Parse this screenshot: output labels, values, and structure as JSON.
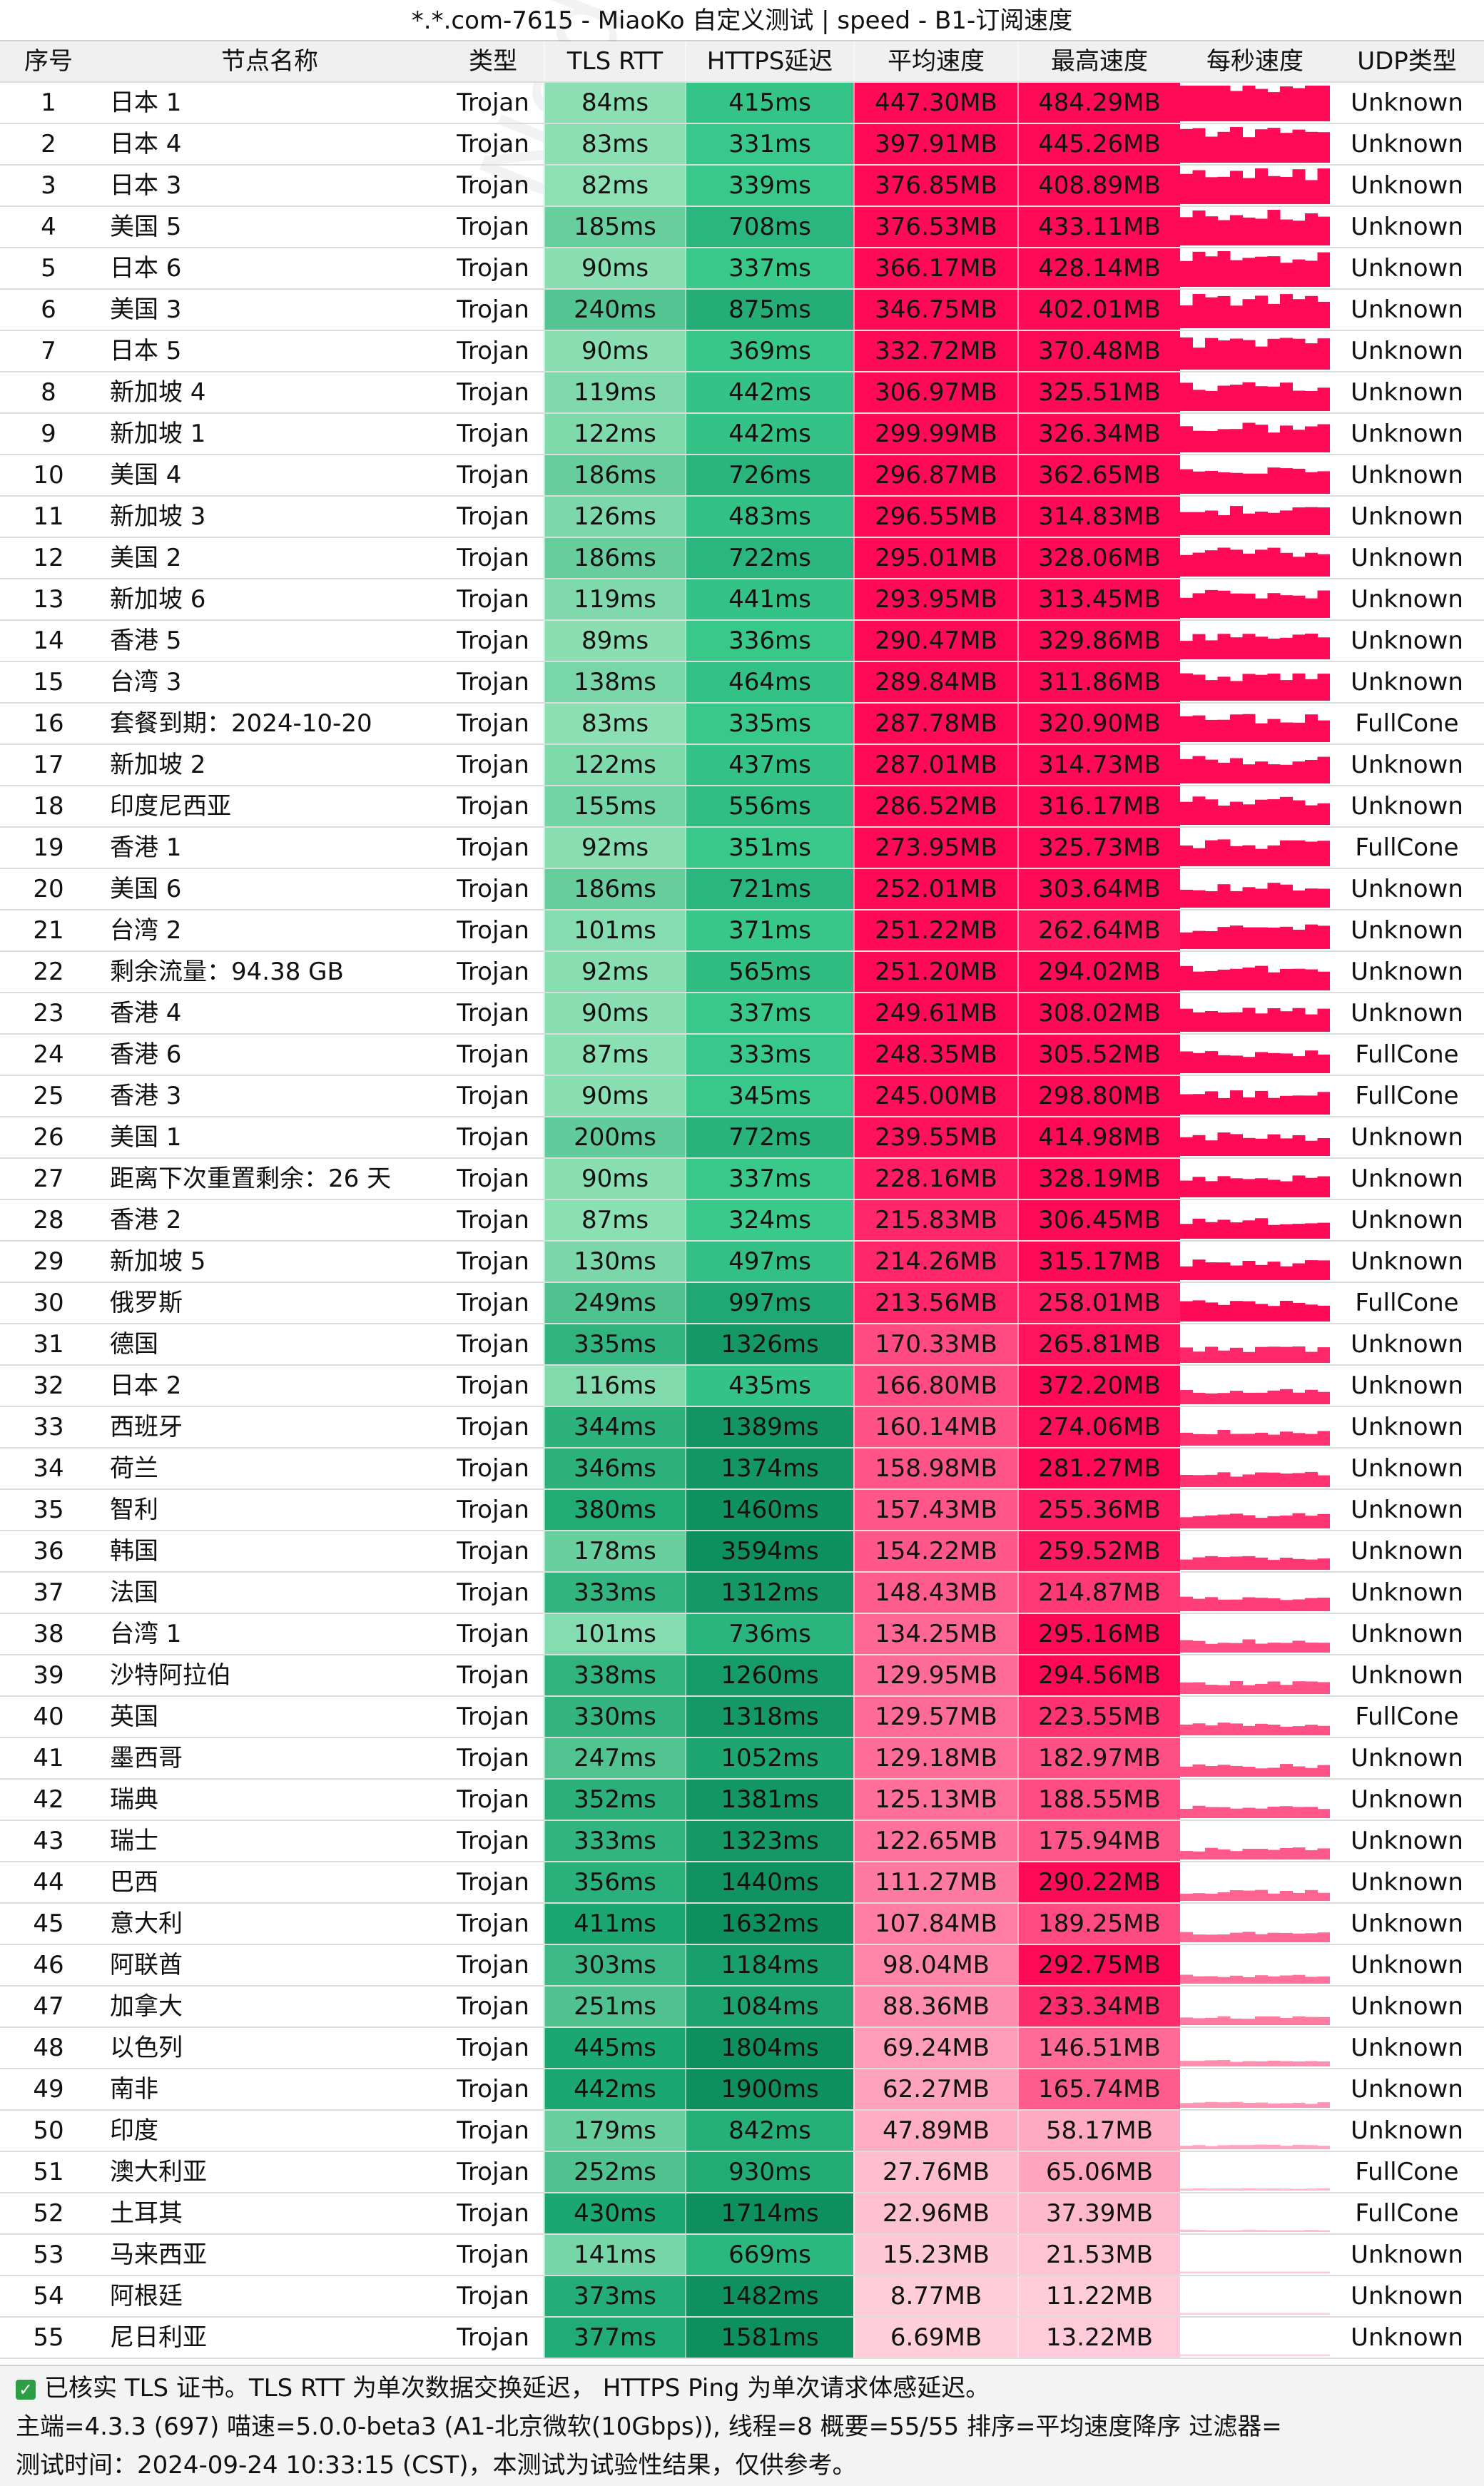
{
  "title": "*.*.com-7615 - MiaoKo 自定义测试 | speed - B1-订阅速度",
  "headers": {
    "idx": "序号",
    "name": "节点名称",
    "type": "类型",
    "tls": "TLS RTT",
    "https": "HTTPS延迟",
    "avg": "平均速度",
    "max": "最高速度",
    "spark": "每秒速度",
    "udp": "UDP类型"
  },
  "rows": [
    {
      "idx": "1",
      "name": "日本 1",
      "type": "Trojan",
      "tls": "84ms",
      "https": "415ms",
      "avg": "447.30MB",
      "max": "484.29MB",
      "udp": "Unknown"
    },
    {
      "idx": "2",
      "name": "日本 4",
      "type": "Trojan",
      "tls": "83ms",
      "https": "331ms",
      "avg": "397.91MB",
      "max": "445.26MB",
      "udp": "Unknown"
    },
    {
      "idx": "3",
      "name": "日本 3",
      "type": "Trojan",
      "tls": "82ms",
      "https": "339ms",
      "avg": "376.85MB",
      "max": "408.89MB",
      "udp": "Unknown"
    },
    {
      "idx": "4",
      "name": "美国 5",
      "type": "Trojan",
      "tls": "185ms",
      "https": "708ms",
      "avg": "376.53MB",
      "max": "433.11MB",
      "udp": "Unknown"
    },
    {
      "idx": "5",
      "name": "日本 6",
      "type": "Trojan",
      "tls": "90ms",
      "https": "337ms",
      "avg": "366.17MB",
      "max": "428.14MB",
      "udp": "Unknown"
    },
    {
      "idx": "6",
      "name": "美国 3",
      "type": "Trojan",
      "tls": "240ms",
      "https": "875ms",
      "avg": "346.75MB",
      "max": "402.01MB",
      "udp": "Unknown"
    },
    {
      "idx": "7",
      "name": "日本 5",
      "type": "Trojan",
      "tls": "90ms",
      "https": "369ms",
      "avg": "332.72MB",
      "max": "370.48MB",
      "udp": "Unknown"
    },
    {
      "idx": "8",
      "name": "新加坡 4",
      "type": "Trojan",
      "tls": "119ms",
      "https": "442ms",
      "avg": "306.97MB",
      "max": "325.51MB",
      "udp": "Unknown"
    },
    {
      "idx": "9",
      "name": "新加坡 1",
      "type": "Trojan",
      "tls": "122ms",
      "https": "442ms",
      "avg": "299.99MB",
      "max": "326.34MB",
      "udp": "Unknown"
    },
    {
      "idx": "10",
      "name": "美国 4",
      "type": "Trojan",
      "tls": "186ms",
      "https": "726ms",
      "avg": "296.87MB",
      "max": "362.65MB",
      "udp": "Unknown"
    },
    {
      "idx": "11",
      "name": "新加坡 3",
      "type": "Trojan",
      "tls": "126ms",
      "https": "483ms",
      "avg": "296.55MB",
      "max": "314.83MB",
      "udp": "Unknown"
    },
    {
      "idx": "12",
      "name": "美国 2",
      "type": "Trojan",
      "tls": "186ms",
      "https": "722ms",
      "avg": "295.01MB",
      "max": "328.06MB",
      "udp": "Unknown"
    },
    {
      "idx": "13",
      "name": "新加坡 6",
      "type": "Trojan",
      "tls": "119ms",
      "https": "441ms",
      "avg": "293.95MB",
      "max": "313.45MB",
      "udp": "Unknown"
    },
    {
      "idx": "14",
      "name": "香港 5",
      "type": "Trojan",
      "tls": "89ms",
      "https": "336ms",
      "avg": "290.47MB",
      "max": "329.86MB",
      "udp": "Unknown"
    },
    {
      "idx": "15",
      "name": "台湾 3",
      "type": "Trojan",
      "tls": "138ms",
      "https": "464ms",
      "avg": "289.84MB",
      "max": "311.86MB",
      "udp": "Unknown"
    },
    {
      "idx": "16",
      "name": "套餐到期：2024-10-20",
      "type": "Trojan",
      "tls": "83ms",
      "https": "335ms",
      "avg": "287.78MB",
      "max": "320.90MB",
      "udp": "FullCone"
    },
    {
      "idx": "17",
      "name": "新加坡 2",
      "type": "Trojan",
      "tls": "122ms",
      "https": "437ms",
      "avg": "287.01MB",
      "max": "314.73MB",
      "udp": "Unknown"
    },
    {
      "idx": "18",
      "name": "印度尼西亚",
      "type": "Trojan",
      "tls": "155ms",
      "https": "556ms",
      "avg": "286.52MB",
      "max": "316.17MB",
      "udp": "Unknown"
    },
    {
      "idx": "19",
      "name": "香港 1",
      "type": "Trojan",
      "tls": "92ms",
      "https": "351ms",
      "avg": "273.95MB",
      "max": "325.73MB",
      "udp": "FullCone"
    },
    {
      "idx": "20",
      "name": "美国 6",
      "type": "Trojan",
      "tls": "186ms",
      "https": "721ms",
      "avg": "252.01MB",
      "max": "303.64MB",
      "udp": "Unknown"
    },
    {
      "idx": "21",
      "name": "台湾 2",
      "type": "Trojan",
      "tls": "101ms",
      "https": "371ms",
      "avg": "251.22MB",
      "max": "262.64MB",
      "udp": "Unknown"
    },
    {
      "idx": "22",
      "name": "剩余流量：94.38 GB",
      "type": "Trojan",
      "tls": "92ms",
      "https": "565ms",
      "avg": "251.20MB",
      "max": "294.02MB",
      "udp": "Unknown"
    },
    {
      "idx": "23",
      "name": "香港 4",
      "type": "Trojan",
      "tls": "90ms",
      "https": "337ms",
      "avg": "249.61MB",
      "max": "308.02MB",
      "udp": "Unknown"
    },
    {
      "idx": "24",
      "name": "香港 6",
      "type": "Trojan",
      "tls": "87ms",
      "https": "333ms",
      "avg": "248.35MB",
      "max": "305.52MB",
      "udp": "FullCone"
    },
    {
      "idx": "25",
      "name": "香港 3",
      "type": "Trojan",
      "tls": "90ms",
      "https": "345ms",
      "avg": "245.00MB",
      "max": "298.80MB",
      "udp": "FullCone"
    },
    {
      "idx": "26",
      "name": "美国 1",
      "type": "Trojan",
      "tls": "200ms",
      "https": "772ms",
      "avg": "239.55MB",
      "max": "414.98MB",
      "udp": "Unknown"
    },
    {
      "idx": "27",
      "name": "距离下次重置剩余：26 天",
      "type": "Trojan",
      "tls": "90ms",
      "https": "337ms",
      "avg": "228.16MB",
      "max": "328.19MB",
      "udp": "Unknown"
    },
    {
      "idx": "28",
      "name": "香港 2",
      "type": "Trojan",
      "tls": "87ms",
      "https": "324ms",
      "avg": "215.83MB",
      "max": "306.45MB",
      "udp": "Unknown"
    },
    {
      "idx": "29",
      "name": "新加坡 5",
      "type": "Trojan",
      "tls": "130ms",
      "https": "497ms",
      "avg": "214.26MB",
      "max": "315.17MB",
      "udp": "Unknown"
    },
    {
      "idx": "30",
      "name": "俄罗斯",
      "type": "Trojan",
      "tls": "249ms",
      "https": "997ms",
      "avg": "213.56MB",
      "max": "258.01MB",
      "udp": "FullCone"
    },
    {
      "idx": "31",
      "name": "德国",
      "type": "Trojan",
      "tls": "335ms",
      "https": "1326ms",
      "avg": "170.33MB",
      "max": "265.81MB",
      "udp": "Unknown"
    },
    {
      "idx": "32",
      "name": "日本 2",
      "type": "Trojan",
      "tls": "116ms",
      "https": "435ms",
      "avg": "166.80MB",
      "max": "372.20MB",
      "udp": "Unknown"
    },
    {
      "idx": "33",
      "name": "西班牙",
      "type": "Trojan",
      "tls": "344ms",
      "https": "1389ms",
      "avg": "160.14MB",
      "max": "274.06MB",
      "udp": "Unknown"
    },
    {
      "idx": "34",
      "name": "荷兰",
      "type": "Trojan",
      "tls": "346ms",
      "https": "1374ms",
      "avg": "158.98MB",
      "max": "281.27MB",
      "udp": "Unknown"
    },
    {
      "idx": "35",
      "name": "智利",
      "type": "Trojan",
      "tls": "380ms",
      "https": "1460ms",
      "avg": "157.43MB",
      "max": "255.36MB",
      "udp": "Unknown"
    },
    {
      "idx": "36",
      "name": "韩国",
      "type": "Trojan",
      "tls": "178ms",
      "https": "3594ms",
      "avg": "154.22MB",
      "max": "259.52MB",
      "udp": "Unknown"
    },
    {
      "idx": "37",
      "name": "法国",
      "type": "Trojan",
      "tls": "333ms",
      "https": "1312ms",
      "avg": "148.43MB",
      "max": "214.87MB",
      "udp": "Unknown"
    },
    {
      "idx": "38",
      "name": "台湾 1",
      "type": "Trojan",
      "tls": "101ms",
      "https": "736ms",
      "avg": "134.25MB",
      "max": "295.16MB",
      "udp": "Unknown"
    },
    {
      "idx": "39",
      "name": "沙特阿拉伯",
      "type": "Trojan",
      "tls": "338ms",
      "https": "1260ms",
      "avg": "129.95MB",
      "max": "294.56MB",
      "udp": "Unknown"
    },
    {
      "idx": "40",
      "name": "英国",
      "type": "Trojan",
      "tls": "330ms",
      "https": "1318ms",
      "avg": "129.57MB",
      "max": "223.55MB",
      "udp": "FullCone"
    },
    {
      "idx": "41",
      "name": "墨西哥",
      "type": "Trojan",
      "tls": "247ms",
      "https": "1052ms",
      "avg": "129.18MB",
      "max": "182.97MB",
      "udp": "Unknown"
    },
    {
      "idx": "42",
      "name": "瑞典",
      "type": "Trojan",
      "tls": "352ms",
      "https": "1381ms",
      "avg": "125.13MB",
      "max": "188.55MB",
      "udp": "Unknown"
    },
    {
      "idx": "43",
      "name": "瑞士",
      "type": "Trojan",
      "tls": "333ms",
      "https": "1323ms",
      "avg": "122.65MB",
      "max": "175.94MB",
      "udp": "Unknown"
    },
    {
      "idx": "44",
      "name": "巴西",
      "type": "Trojan",
      "tls": "356ms",
      "https": "1440ms",
      "avg": "111.27MB",
      "max": "290.22MB",
      "udp": "Unknown"
    },
    {
      "idx": "45",
      "name": "意大利",
      "type": "Trojan",
      "tls": "411ms",
      "https": "1632ms",
      "avg": "107.84MB",
      "max": "189.25MB",
      "udp": "Unknown"
    },
    {
      "idx": "46",
      "name": "阿联酋",
      "type": "Trojan",
      "tls": "303ms",
      "https": "1184ms",
      "avg": "98.04MB",
      "max": "292.75MB",
      "udp": "Unknown"
    },
    {
      "idx": "47",
      "name": "加拿大",
      "type": "Trojan",
      "tls": "251ms",
      "https": "1084ms",
      "avg": "88.36MB",
      "max": "233.34MB",
      "udp": "Unknown"
    },
    {
      "idx": "48",
      "name": "以色列",
      "type": "Trojan",
      "tls": "445ms",
      "https": "1804ms",
      "avg": "69.24MB",
      "max": "146.51MB",
      "udp": "Unknown"
    },
    {
      "idx": "49",
      "name": "南非",
      "type": "Trojan",
      "tls": "442ms",
      "https": "1900ms",
      "avg": "62.27MB",
      "max": "165.74MB",
      "udp": "Unknown"
    },
    {
      "idx": "50",
      "name": "印度",
      "type": "Trojan",
      "tls": "179ms",
      "https": "842ms",
      "avg": "47.89MB",
      "max": "58.17MB",
      "udp": "Unknown"
    },
    {
      "idx": "51",
      "name": "澳大利亚",
      "type": "Trojan",
      "tls": "252ms",
      "https": "930ms",
      "avg": "27.76MB",
      "max": "65.06MB",
      "udp": "FullCone"
    },
    {
      "idx": "52",
      "name": "土耳其",
      "type": "Trojan",
      "tls": "430ms",
      "https": "1714ms",
      "avg": "22.96MB",
      "max": "37.39MB",
      "udp": "FullCone"
    },
    {
      "idx": "53",
      "name": "马来西亚",
      "type": "Trojan",
      "tls": "141ms",
      "https": "669ms",
      "avg": "15.23MB",
      "max": "21.53MB",
      "udp": "Unknown"
    },
    {
      "idx": "54",
      "name": "阿根廷",
      "type": "Trojan",
      "tls": "373ms",
      "https": "1482ms",
      "avg": "8.77MB",
      "max": "11.22MB",
      "udp": "Unknown"
    },
    {
      "idx": "55",
      "name": "尼日利亚",
      "type": "Trojan",
      "tls": "377ms",
      "https": "1581ms",
      "avg": "6.69MB",
      "max": "13.22MB",
      "udp": "Unknown"
    }
  ],
  "footer": {
    "line1": "已核实 TLS 证书。TLS RTT 为单次数据交换延迟， HTTPS Ping 为单次请求体感延迟。",
    "line2": "主端=4.3.3 (697) 喵速=5.0.0-beta3 (A1-北京微软(10Gbps)), 线程=8 概要=55/55 排序=平均速度降序 过滤器=",
    "line3": "测试时间：2024-09-24 10:33:15 (CST)，本测试为试验性结果，仅供参考。"
  },
  "watermark": "NodeFunction",
  "colors": {
    "tls_fast": "#8de0b4",
    "tls_slow": "#1aa870",
    "https_fast": "#38c98b",
    "https_slow": "#0d8f5e",
    "speed_high": "#ff0a56",
    "speed_low": "#ffd4df",
    "header_bg": "#f0f0f0"
  }
}
